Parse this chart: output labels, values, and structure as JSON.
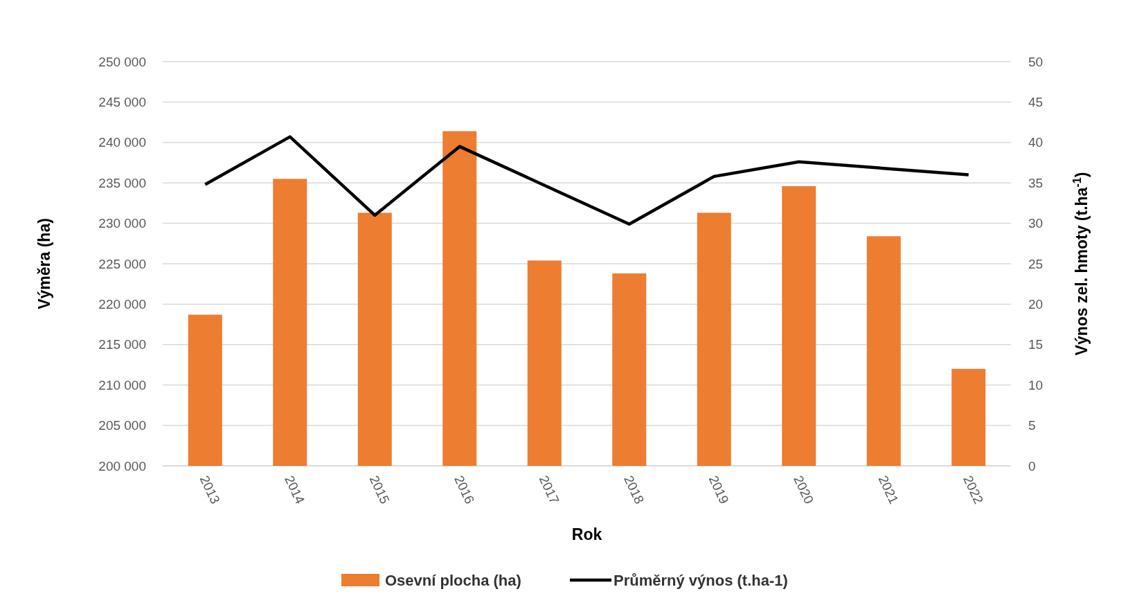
{
  "chart_data": {
    "type": "bar",
    "xlabel": "Rok",
    "ylabel": "Výměra (ha)",
    "y2label": "Výnos zel. hmoty (t.ha$^{-1}$)",
    "categories": [
      "2013",
      "2014",
      "2015",
      "2016",
      "2017",
      "2018",
      "2019",
      "2020",
      "2021",
      "2022"
    ],
    "series": [
      {
        "name": "Osevní plocha (ha)",
        "color": "#ed7d31",
        "values": [
          218700,
          235500,
          231300,
          241400,
          225400,
          223800,
          231300,
          234600,
          228400,
          212000
        ]
      },
      {
        "name": "Průměrný výnos (t.ha-1)",
        "type": "line",
        "axis": "y2",
        "color": "#000000",
        "values": [
          34.8,
          40.7,
          31.0,
          39.5,
          34.7,
          29.9,
          35.8,
          37.6,
          36.8,
          36.0
        ]
      }
    ],
    "ylim": [
      200000,
      250000
    ],
    "yticks": [
      {
        "value": 200000,
        "label": "200 000"
      },
      {
        "value": 205000,
        "label": "205 000"
      },
      {
        "value": 210000,
        "label": "210 000"
      },
      {
        "value": 215000,
        "label": "215 000"
      },
      {
        "value": 220000,
        "label": "220 000"
      },
      {
        "value": 225000,
        "label": "225 000"
      },
      {
        "value": 230000,
        "label": "230 000"
      },
      {
        "value": 235000,
        "label": "235 000"
      },
      {
        "value": 240000,
        "label": "240 000"
      },
      {
        "value": 245000,
        "label": "245 000"
      },
      {
        "value": 250000,
        "label": "250 000"
      }
    ],
    "y2lim": [
      0,
      50
    ],
    "y2ticks": [
      0,
      5,
      10,
      15,
      20,
      25,
      30,
      35,
      40,
      45,
      50
    ],
    "grid": "y",
    "legend": "bottom",
    "marker": "none",
    "line_style": "solid"
  }
}
